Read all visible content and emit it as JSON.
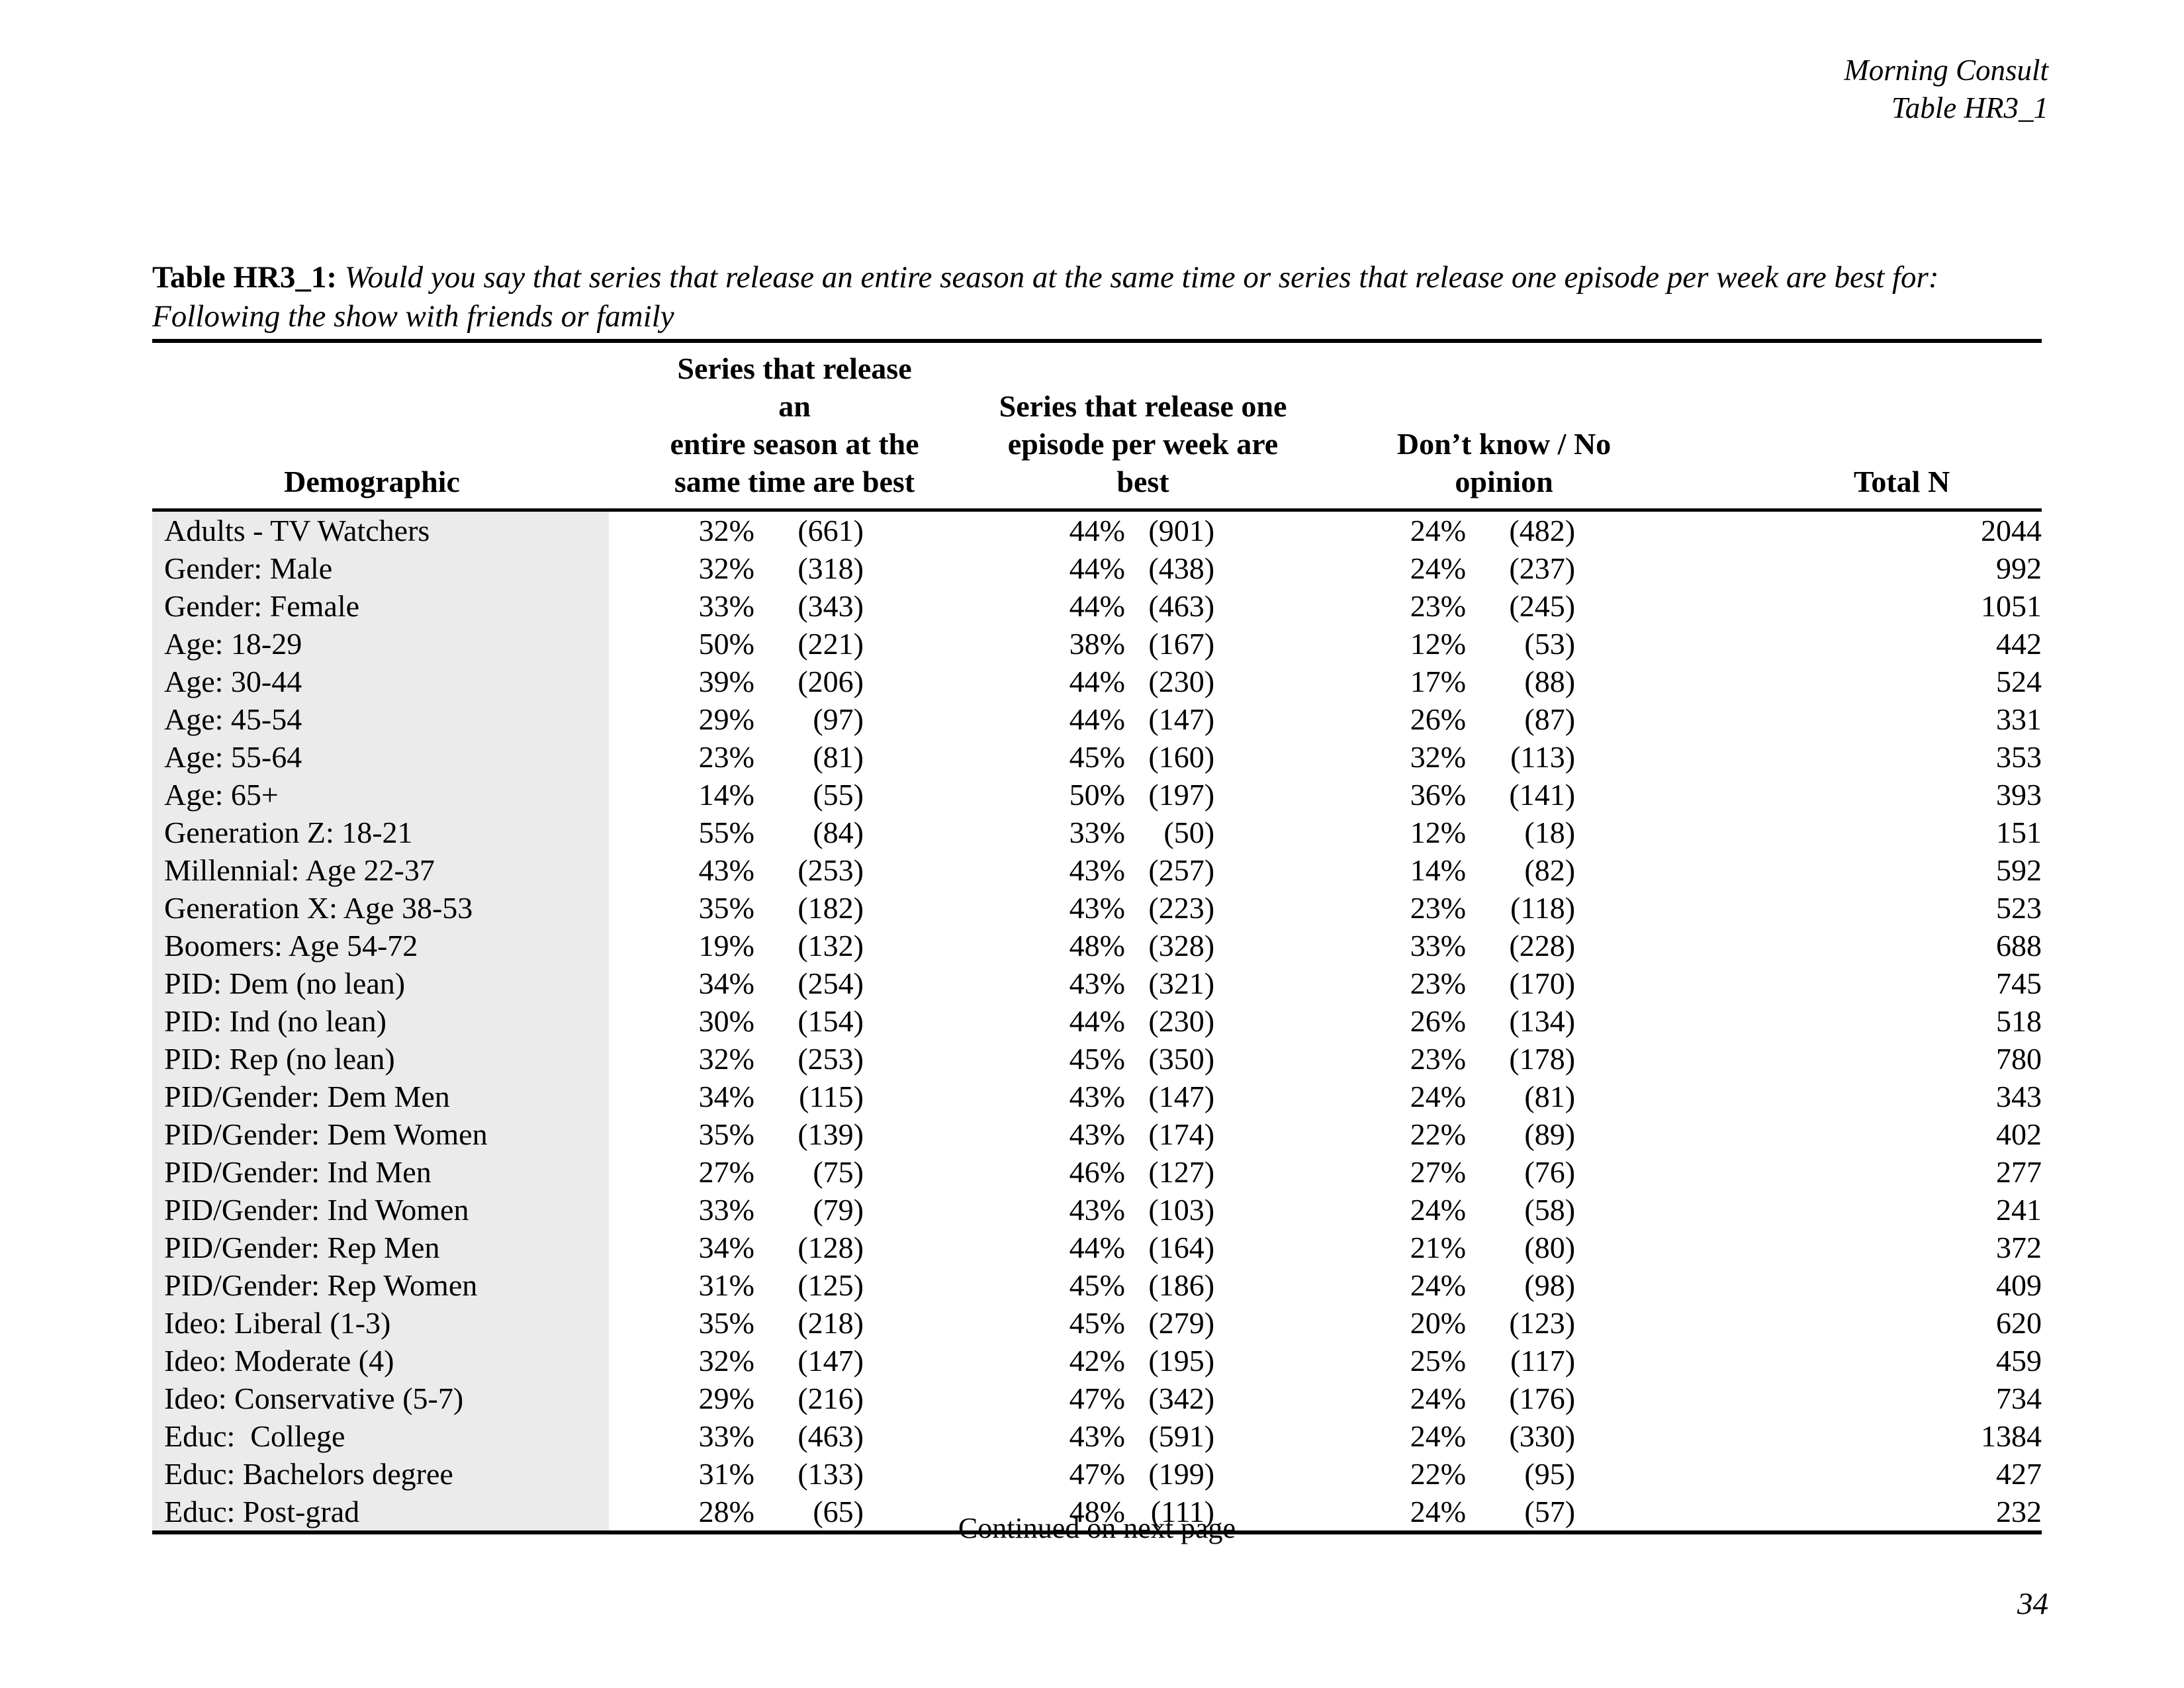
{
  "page_header": {
    "org": "Morning Consult",
    "table_ref": "Table HR3_1"
  },
  "title": {
    "label": "Table HR3_1:",
    "question_line1": "Would you say that series that release an entire season at the same time or series that release one episode per week are best for:",
    "question_line2": "Following the show with friends or family"
  },
  "table": {
    "columns": [
      {
        "label": "Demographic"
      },
      {
        "label": "Series that release an\nentire season at the\nsame time are best"
      },
      {
        "label": "Series that release one\nepisode per week are\nbest"
      },
      {
        "label": "Don’t know / No\nopinion"
      },
      {
        "label": "Total N"
      }
    ],
    "rows": [
      [
        "Adults - TV Watchers",
        "32%",
        "(661)",
        "44%",
        "(901)",
        "24%",
        "(482)",
        "2044"
      ],
      [
        "Gender: Male",
        "32%",
        "(318)",
        "44%",
        "(438)",
        "24%",
        "(237)",
        "992"
      ],
      [
        "Gender: Female",
        "33%",
        "(343)",
        "44%",
        "(463)",
        "23%",
        "(245)",
        "1051"
      ],
      [
        "Age: 18-29",
        "50%",
        "(221)",
        "38%",
        "(167)",
        "12%",
        "(53)",
        "442"
      ],
      [
        "Age: 30-44",
        "39%",
        "(206)",
        "44%",
        "(230)",
        "17%",
        "(88)",
        "524"
      ],
      [
        "Age: 45-54",
        "29%",
        "(97)",
        "44%",
        "(147)",
        "26%",
        "(87)",
        "331"
      ],
      [
        "Age: 55-64",
        "23%",
        "(81)",
        "45%",
        "(160)",
        "32%",
        "(113)",
        "353"
      ],
      [
        "Age: 65+",
        "14%",
        "(55)",
        "50%",
        "(197)",
        "36%",
        "(141)",
        "393"
      ],
      [
        "Generation Z: 18-21",
        "55%",
        "(84)",
        "33%",
        "(50)",
        "12%",
        "(18)",
        "151"
      ],
      [
        "Millennial: Age 22-37",
        "43%",
        "(253)",
        "43%",
        "(257)",
        "14%",
        "(82)",
        "592"
      ],
      [
        "Generation X: Age 38-53",
        "35%",
        "(182)",
        "43%",
        "(223)",
        "23%",
        "(118)",
        "523"
      ],
      [
        "Boomers: Age 54-72",
        "19%",
        "(132)",
        "48%",
        "(328)",
        "33%",
        "(228)",
        "688"
      ],
      [
        "PID: Dem (no lean)",
        "34%",
        "(254)",
        "43%",
        "(321)",
        "23%",
        "(170)",
        "745"
      ],
      [
        "PID: Ind (no lean)",
        "30%",
        "(154)",
        "44%",
        "(230)",
        "26%",
        "(134)",
        "518"
      ],
      [
        "PID: Rep (no lean)",
        "32%",
        "(253)",
        "45%",
        "(350)",
        "23%",
        "(178)",
        "780"
      ],
      [
        "PID/Gender: Dem Men",
        "34%",
        "(115)",
        "43%",
        "(147)",
        "24%",
        "(81)",
        "343"
      ],
      [
        "PID/Gender: Dem Women",
        "35%",
        "(139)",
        "43%",
        "(174)",
        "22%",
        "(89)",
        "402"
      ],
      [
        "PID/Gender: Ind Men",
        "27%",
        "(75)",
        "46%",
        "(127)",
        "27%",
        "(76)",
        "277"
      ],
      [
        "PID/Gender: Ind Women",
        "33%",
        "(79)",
        "43%",
        "(103)",
        "24%",
        "(58)",
        "241"
      ],
      [
        "PID/Gender: Rep Men",
        "34%",
        "(128)",
        "44%",
        "(164)",
        "21%",
        "(80)",
        "372"
      ],
      [
        "PID/Gender: Rep Women",
        "31%",
        "(125)",
        "45%",
        "(186)",
        "24%",
        "(98)",
        "409"
      ],
      [
        "Ideo: Liberal (1-3)",
        "35%",
        "(218)",
        "45%",
        "(279)",
        "20%",
        "(123)",
        "620"
      ],
      [
        "Ideo: Moderate (4)",
        "32%",
        "(147)",
        "42%",
        "(195)",
        "25%",
        "(117)",
        "459"
      ],
      [
        "Ideo: Conservative (5-7)",
        "29%",
        "(216)",
        "47%",
        "(342)",
        "24%",
        "(176)",
        "734"
      ],
      [
        "Educ:  College",
        "33%",
        "(463)",
        "43%",
        "(591)",
        "24%",
        "(330)",
        "1384"
      ],
      [
        "Educ: Bachelors degree",
        "31%",
        "(133)",
        "47%",
        "(199)",
        "22%",
        "(95)",
        "427"
      ],
      [
        "Educ: Post-grad",
        "28%",
        "(65)",
        "48%",
        "(111)",
        "24%",
        "(57)",
        "232"
      ]
    ]
  },
  "footer": {
    "continued": "Continued on next page",
    "page_number": "34"
  }
}
